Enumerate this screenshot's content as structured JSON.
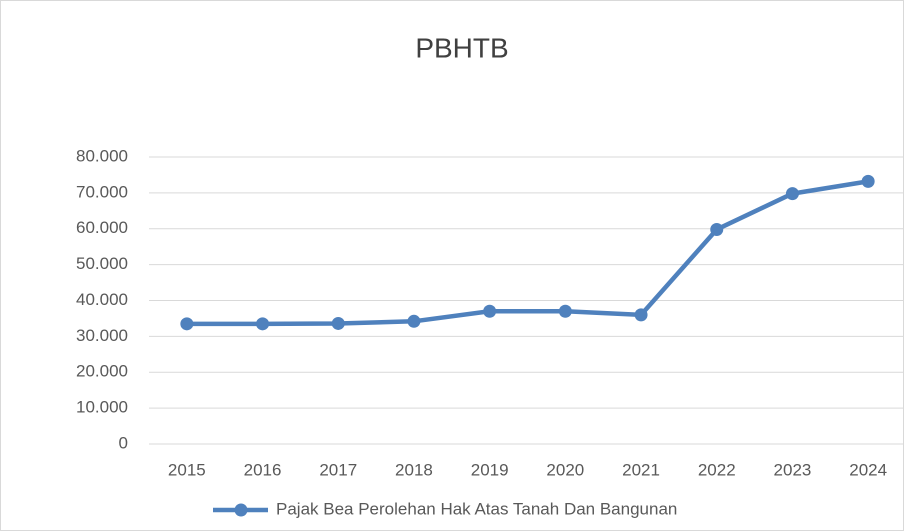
{
  "chart_data": {
    "type": "line",
    "title": "PBHTB",
    "categories": [
      "2015",
      "2016",
      "2017",
      "2018",
      "2019",
      "2020",
      "2021",
      "2022",
      "2023",
      "2024"
    ],
    "series": [
      {
        "name": "Pajak Bea Perolehan Hak Atas Tanah Dan Bangunan",
        "color": "#4f81bd",
        "values": [
          33500,
          33500,
          33600,
          34200,
          37000,
          37000,
          36000,
          59800,
          69800,
          73200
        ]
      }
    ],
    "ylim": [
      0,
      80000
    ],
    "yticks": [
      0,
      {
        "value": 10000,
        "label": "10.000"
      },
      {
        "value": 20000,
        "label": "20.000"
      },
      {
        "value": 30000,
        "label": "30.000"
      },
      {
        "value": 40000,
        "label": "40.000"
      },
      {
        "value": 50000,
        "label": "50.000"
      },
      {
        "value": 60000,
        "label": "60.000"
      },
      {
        "value": 70000,
        "label": "70.000"
      },
      {
        "value": 80000,
        "label": "80.000"
      }
    ],
    "grid": true,
    "legend": "bottom"
  }
}
